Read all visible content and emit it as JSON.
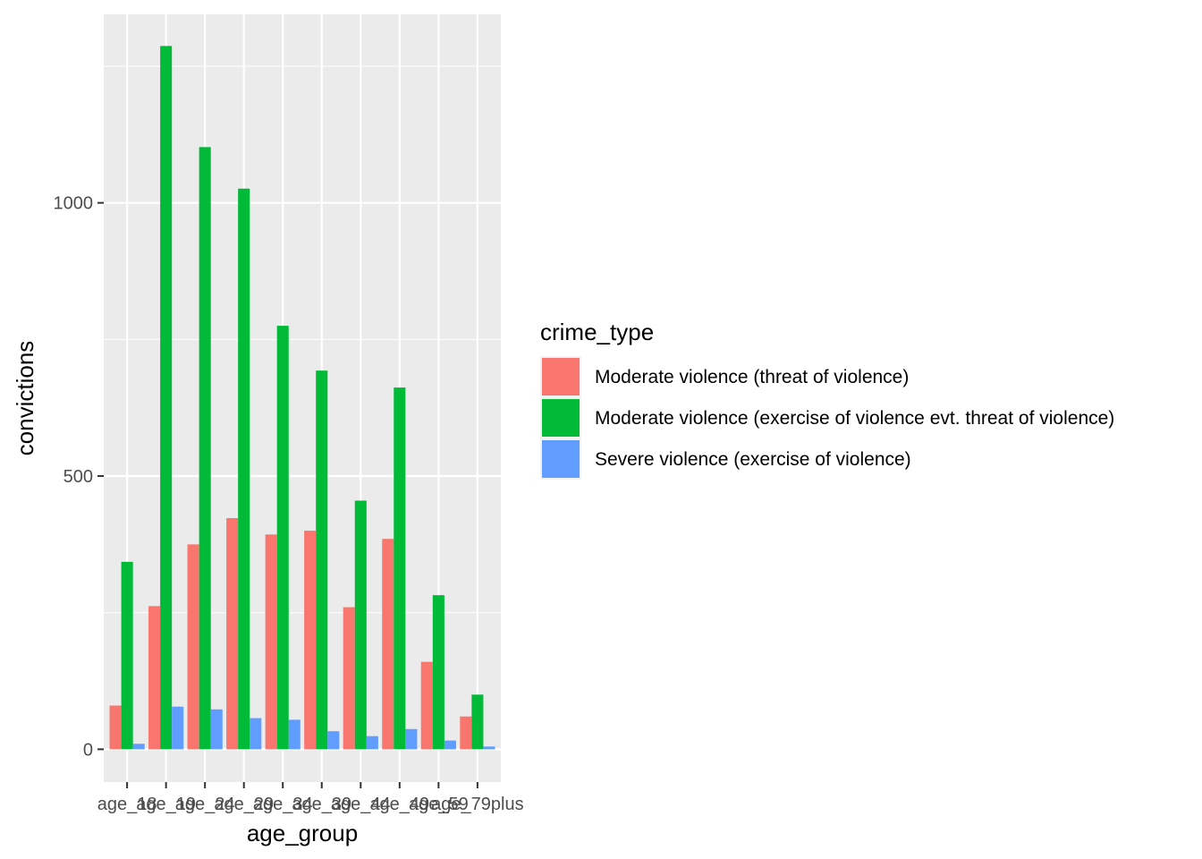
{
  "chart_data": {
    "type": "bar",
    "xlabel": "age_group",
    "ylabel": "convictions",
    "ylim": [
      -60,
      1345
    ],
    "yticks": [
      0,
      500,
      1000
    ],
    "grid": true,
    "legend_position": "right",
    "legend_title": "crime_type",
    "categories": [
      "age_18",
      "age_19",
      "age_24",
      "age_29",
      "age_34",
      "age_39",
      "age_44",
      "age_49",
      "age_59",
      "age_79plus"
    ],
    "series": [
      {
        "name": "Moderate violence (threat of violence)",
        "color": "#F8766D",
        "values": [
          80,
          262,
          375,
          423,
          393,
          400,
          260,
          385,
          160,
          60
        ]
      },
      {
        "name": "Moderate violence (exercise of violence evt. threat of violence)",
        "color": "#00BA38",
        "values": [
          343,
          1287,
          1102,
          1026,
          775,
          693,
          455,
          662,
          282,
          100
        ]
      },
      {
        "name": "Severe violence (exercise of violence)",
        "color": "#619CFF",
        "values": [
          10,
          78,
          73,
          57,
          54,
          33,
          24,
          37,
          16,
          5
        ]
      }
    ]
  }
}
